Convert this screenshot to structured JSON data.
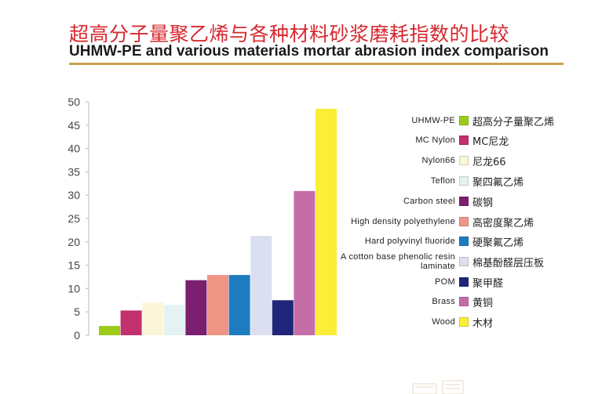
{
  "title_cn": "超高分子量聚乙烯与各种材料砂浆磨耗指数的比较",
  "title_en": "UHMW-PE and various materials mortar abrasion index comparison",
  "chart_data": {
    "type": "bar",
    "ylim": [
      0,
      50
    ],
    "yticks": [
      0,
      5,
      10,
      15,
      20,
      25,
      30,
      35,
      40,
      45,
      50
    ],
    "grid": false,
    "legend_placement": "right",
    "series": [
      {
        "name_en": "UHMW-PE",
        "name_cn": "超高分子量聚乙烯",
        "value": 2,
        "color": "#9ccb19"
      },
      {
        "name_en": "MC Nylon",
        "name_cn": "MC尼龙",
        "value": 5.3,
        "color": "#c2306d"
      },
      {
        "name_en": "Nylon66",
        "name_cn": "尼龙66",
        "value": 7,
        "color": "#fbf6d7"
      },
      {
        "name_en": "Teflon",
        "name_cn": "聚四氟乙烯",
        "value": 6.5,
        "color": "#e4f2f3"
      },
      {
        "name_en": "Carbon steel",
        "name_cn": "碳钢",
        "value": 11.8,
        "color": "#7c1f6e"
      },
      {
        "name_en": "High density polyethylene",
        "name_cn": "高密度聚乙烯",
        "value": 12.9,
        "color": "#ef9586"
      },
      {
        "name_en": "Hard polyvinyl fluoride",
        "name_cn": "硬聚氟乙烯",
        "value": 12.9,
        "color": "#1d7bc0"
      },
      {
        "name_en": "A cotton base phenolic resin laminate",
        "name_cn": "棉基酚醛层压板",
        "value": 21.3,
        "color": "#dcdff0"
      },
      {
        "name_en": "POM",
        "name_cn": "聚甲醛",
        "value": 7.5,
        "color": "#1e257a"
      },
      {
        "name_en": "Brass",
        "name_cn": "黄铜",
        "value": 30.9,
        "color": "#c46ea7"
      },
      {
        "name_en": "Wood",
        "name_cn": "木材",
        "value": 48.5,
        "color": "#faee38"
      }
    ]
  }
}
